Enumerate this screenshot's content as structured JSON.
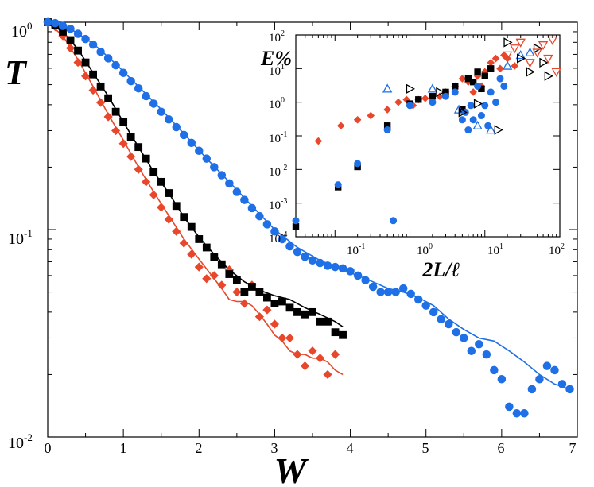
{
  "chart_data": [
    {
      "type": "scatter",
      "id": "main",
      "title": "",
      "xlabel": "W",
      "ylabel": "T",
      "xlim": [
        0,
        7
      ],
      "ylim": [
        0.01,
        1
      ],
      "yscale": "log",
      "grid": false,
      "xticks": [
        "0",
        "1",
        "2",
        "3",
        "4",
        "5",
        "6",
        "7"
      ],
      "yticks": [
        {
          "base": "10",
          "exp": "0"
        },
        {
          "base": "10",
          "exp": "-1"
        },
        {
          "base": "10",
          "exp": "-2"
        }
      ],
      "colors": {
        "red": "#e8472b",
        "black": "#000000",
        "blue": "#1f6fe6"
      },
      "series": [
        {
          "name": "red-diamonds",
          "color": "#e8472b",
          "marker": "diamond",
          "x": [
            0.0,
            0.1,
            0.2,
            0.3,
            0.4,
            0.5,
            0.6,
            0.7,
            0.8,
            0.9,
            1.0,
            1.1,
            1.2,
            1.3,
            1.4,
            1.5,
            1.6,
            1.7,
            1.8,
            1.9,
            2.0,
            2.1,
            2.2,
            2.3,
            2.4,
            2.5,
            2.6,
            2.7,
            2.8,
            2.9,
            3.0,
            3.1,
            3.2,
            3.3,
            3.4,
            3.5,
            3.6,
            3.7,
            3.8
          ],
          "y": [
            1.0,
            0.95,
            0.86,
            0.75,
            0.64,
            0.55,
            0.47,
            0.41,
            0.35,
            0.3,
            0.26,
            0.225,
            0.195,
            0.17,
            0.147,
            0.128,
            0.112,
            0.098,
            0.086,
            0.076,
            0.066,
            0.058,
            0.06,
            0.054,
            0.064,
            0.05,
            0.044,
            0.054,
            0.038,
            0.041,
            0.035,
            0.03,
            0.03,
            0.025,
            0.022,
            0.026,
            0.024,
            0.02,
            0.025
          ]
        },
        {
          "name": "black-squares",
          "color": "#000000",
          "marker": "square",
          "x": [
            0.0,
            0.1,
            0.2,
            0.3,
            0.4,
            0.5,
            0.6,
            0.7,
            0.8,
            0.9,
            1.0,
            1.1,
            1.2,
            1.3,
            1.4,
            1.5,
            1.6,
            1.7,
            1.8,
            1.9,
            2.0,
            2.1,
            2.2,
            2.3,
            2.4,
            2.5,
            2.6,
            2.7,
            2.8,
            2.9,
            3.0,
            3.1,
            3.2,
            3.3,
            3.4,
            3.5,
            3.6,
            3.7,
            3.8,
            3.9
          ],
          "y": [
            1.0,
            0.97,
            0.9,
            0.82,
            0.73,
            0.64,
            0.56,
            0.49,
            0.43,
            0.37,
            0.33,
            0.28,
            0.25,
            0.22,
            0.19,
            0.17,
            0.15,
            0.13,
            0.115,
            0.103,
            0.09,
            0.082,
            0.074,
            0.068,
            0.061,
            0.057,
            0.05,
            0.053,
            0.05,
            0.047,
            0.044,
            0.045,
            0.042,
            0.04,
            0.039,
            0.04,
            0.036,
            0.036,
            0.032,
            0.031
          ]
        },
        {
          "name": "blue-circles",
          "color": "#1f6fe6",
          "marker": "circle",
          "x": [
            0.0,
            0.1,
            0.2,
            0.3,
            0.4,
            0.5,
            0.6,
            0.7,
            0.8,
            0.9,
            1.0,
            1.1,
            1.2,
            1.3,
            1.4,
            1.5,
            1.6,
            1.7,
            1.8,
            1.9,
            2.0,
            2.1,
            2.2,
            2.3,
            2.4,
            2.5,
            2.6,
            2.7,
            2.8,
            2.9,
            3.0,
            3.1,
            3.2,
            3.3,
            3.4,
            3.5,
            3.6,
            3.7,
            3.8,
            3.9,
            4.0,
            4.1,
            4.2,
            4.3,
            4.4,
            4.5,
            4.6,
            4.7,
            4.8,
            4.9,
            5.0,
            5.1,
            5.2,
            5.3,
            5.4,
            5.5,
            5.6,
            5.7,
            5.8,
            5.9,
            6.0,
            6.1,
            6.2,
            6.3,
            6.4,
            6.5,
            6.6,
            6.7,
            6.8,
            6.9
          ],
          "y": [
            1.0,
            0.99,
            0.96,
            0.93,
            0.88,
            0.83,
            0.78,
            0.72,
            0.67,
            0.62,
            0.57,
            0.52,
            0.48,
            0.44,
            0.405,
            0.37,
            0.34,
            0.312,
            0.286,
            0.262,
            0.24,
            0.22,
            0.2,
            0.183,
            0.167,
            0.152,
            0.139,
            0.127,
            0.116,
            0.106,
            0.098,
            0.09,
            0.083,
            0.078,
            0.074,
            0.071,
            0.069,
            0.067,
            0.066,
            0.065,
            0.063,
            0.06,
            0.057,
            0.053,
            0.05,
            0.05,
            0.05,
            0.052,
            0.049,
            0.046,
            0.043,
            0.04,
            0.037,
            0.035,
            0.032,
            0.03,
            0.026,
            0.028,
            0.025,
            0.021,
            0.019,
            0.014,
            0.013,
            0.013,
            0.017,
            0.019,
            0.022,
            0.021,
            0.018,
            0.017
          ]
        }
      ],
      "fit_lines": [
        {
          "name": "red-line",
          "color": "#e8472b",
          "x": [
            0.0,
            0.2,
            0.4,
            0.6,
            0.8,
            1.0,
            1.2,
            1.4,
            1.6,
            1.8,
            2.0,
            2.2,
            2.3,
            2.4,
            2.5,
            2.6,
            2.7,
            2.8,
            2.9,
            3.0,
            3.1,
            3.2,
            3.3,
            3.4,
            3.5,
            3.6,
            3.7,
            3.8,
            3.9
          ],
          "y": [
            1.0,
            0.86,
            0.66,
            0.49,
            0.36,
            0.27,
            0.2,
            0.152,
            0.117,
            0.09,
            0.072,
            0.058,
            0.052,
            0.046,
            0.045,
            0.045,
            0.043,
            0.039,
            0.035,
            0.031,
            0.029,
            0.026,
            0.025,
            0.025,
            0.024,
            0.024,
            0.023,
            0.021,
            0.02
          ]
        },
        {
          "name": "black-line",
          "color": "#000000",
          "x": [
            0.0,
            0.2,
            0.4,
            0.6,
            0.8,
            1.0,
            1.2,
            1.4,
            1.6,
            1.8,
            2.0,
            2.2,
            2.4,
            2.6,
            2.8,
            3.0,
            3.2,
            3.4,
            3.6,
            3.8,
            3.9
          ],
          "y": [
            1.0,
            0.9,
            0.74,
            0.57,
            0.44,
            0.33,
            0.25,
            0.19,
            0.15,
            0.115,
            0.092,
            0.076,
            0.064,
            0.056,
            0.051,
            0.048,
            0.046,
            0.042,
            0.039,
            0.036,
            0.034
          ]
        },
        {
          "name": "blue-line",
          "color": "#1f6fe6",
          "x": [
            0.0,
            0.3,
            0.6,
            0.9,
            1.2,
            1.5,
            1.8,
            2.1,
            2.4,
            2.7,
            3.0,
            3.3,
            3.6,
            3.9,
            4.2,
            4.5,
            4.7,
            4.9,
            5.1,
            5.3,
            5.5,
            5.7,
            5.9,
            6.1,
            6.3,
            6.5,
            6.7,
            6.9
          ],
          "y": [
            1.0,
            0.93,
            0.79,
            0.63,
            0.49,
            0.38,
            0.29,
            0.22,
            0.17,
            0.13,
            0.1,
            0.082,
            0.071,
            0.064,
            0.058,
            0.052,
            0.05,
            0.047,
            0.043,
            0.037,
            0.033,
            0.03,
            0.029,
            0.026,
            0.023,
            0.02,
            0.018,
            0.017
          ]
        }
      ]
    },
    {
      "type": "scatter",
      "id": "inset",
      "title": "",
      "xlabel": "2L/ℓ",
      "ylabel": "E%",
      "xlim": [
        0.03,
        100
      ],
      "ylim": [
        0.0001,
        100
      ],
      "xscale": "log",
      "yscale": "log",
      "grid": false,
      "xticks": [
        {
          "base": "10",
          "exp": "-1"
        },
        {
          "base": "10",
          "exp": "0"
        },
        {
          "base": "10",
          "exp": "1"
        },
        {
          "base": "10",
          "exp": "2"
        }
      ],
      "yticks": [
        {
          "base": "10",
          "exp": "2"
        },
        {
          "base": "10",
          "exp": "1"
        },
        {
          "base": "10",
          "exp": "0"
        },
        {
          "base": "10",
          "exp": "-1"
        },
        {
          "base": "10",
          "exp": "-2"
        },
        {
          "base": "10",
          "exp": "-3"
        },
        {
          "base": "10",
          "exp": "-4"
        }
      ],
      "series": [
        {
          "name": "red-diamonds",
          "color": "#e8472b",
          "marker": "diamond",
          "x": [
            0.06,
            0.12,
            0.2,
            0.3,
            0.5,
            0.7,
            0.9,
            1.1,
            1.3,
            1.6,
            2.0,
            2.5,
            3.0,
            4.0,
            5.0,
            6.0,
            7.0,
            8.0,
            9.0,
            10.0,
            12.0,
            14.0,
            16.0,
            18.0,
            20.0,
            25.0
          ],
          "y": [
            0.07,
            0.2,
            0.3,
            0.4,
            0.6,
            1.0,
            1.2,
            0.8,
            1.2,
            1.3,
            1.0,
            1.5,
            2.0,
            3.0,
            5.0,
            4.0,
            2.0,
            6.0,
            3.0,
            8.0,
            15.0,
            20.0,
            10.0,
            25.0,
            20.0,
            12.0
          ]
        },
        {
          "name": "black-squares",
          "color": "#000000",
          "marker": "square",
          "x": [
            0.03,
            0.11,
            0.2,
            0.5,
            1.0,
            1.3,
            2.0,
            3.0,
            4.0,
            5.0,
            6.0,
            7.0,
            8.0,
            9.0,
            10.0,
            12.0
          ],
          "y": [
            0.0002,
            0.003,
            0.012,
            0.2,
            0.9,
            1.2,
            1.5,
            2.0,
            3.0,
            0.6,
            5.0,
            4.0,
            8.0,
            2.5,
            6.0,
            10.0
          ]
        },
        {
          "name": "blue-circles",
          "color": "#1f6fe6",
          "marker": "circle",
          "x": [
            0.03,
            0.11,
            0.2,
            0.5,
            0.6,
            1.0,
            2.0,
            3.0,
            4.0,
            5.0,
            5.5,
            6.0,
            6.5,
            7.0,
            8.0,
            9.0,
            10.0,
            11.0,
            12.0,
            14.0,
            16.0,
            18.0
          ],
          "y": [
            0.0003,
            0.0035,
            0.015,
            0.15,
            0.0003,
            0.8,
            1.0,
            1.5,
            2.0,
            0.3,
            0.5,
            0.15,
            0.8,
            0.3,
            3.0,
            0.4,
            0.8,
            0.2,
            2.0,
            1.0,
            5.0,
            3.0
          ]
        },
        {
          "name": "blue-triangles-up",
          "color": "#1f6fe6",
          "marker": "triangle-up-open",
          "x": [
            0.5,
            2.0,
            4.5,
            8.0,
            12.0,
            20.0,
            30.0,
            40.0
          ],
          "y": [
            2.5,
            2.5,
            0.6,
            0.2,
            0.15,
            12.0,
            25.0,
            30.0
          ]
        },
        {
          "name": "black-triangles-right",
          "color": "#000000",
          "marker": "triangle-right-open",
          "x": [
            1.0,
            2.5,
            5.0,
            8.0,
            15.0,
            20.0,
            30.0,
            40.0,
            50.0,
            60.0,
            70.0
          ],
          "y": [
            2.5,
            2.0,
            0.5,
            0.9,
            0.15,
            60.0,
            20.0,
            8.0,
            40.0,
            15.0,
            6.0
          ]
        },
        {
          "name": "red-triangles-down",
          "color": "#e8472b",
          "marker": "triangle-down-open",
          "x": [
            20.0,
            25.0,
            30.0,
            40.0,
            50.0,
            60.0,
            70.0,
            80.0,
            90.0
          ],
          "y": [
            25.0,
            40.0,
            60.0,
            15.0,
            30.0,
            50.0,
            20.0,
            70.0,
            8.0
          ]
        }
      ]
    }
  ]
}
